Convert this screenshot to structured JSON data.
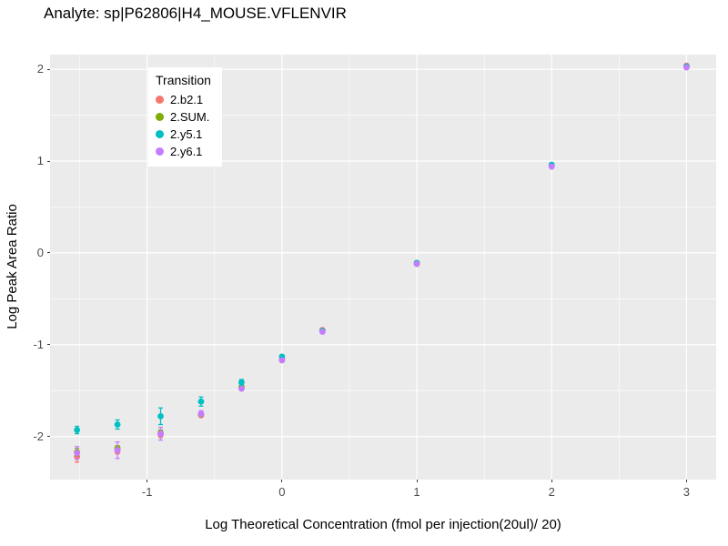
{
  "title": "Analyte: sp|P62806|H4_MOUSE.VFLENVIR",
  "chart_data": {
    "type": "scatter",
    "subtype": "pointrange-calibration-curve",
    "title": "Analyte: sp|P62806|H4_MOUSE.VFLENVIR",
    "xlabel": "Log Theoretical Concentration (fmol per injection(20ul)/ 20)",
    "ylabel": "Log Peak Area Ratio",
    "legend_title": "Transition",
    "legend_position": "inside top-left",
    "grid": true,
    "panel_background": "#EBEBEB",
    "grid_color": "#FFFFFF",
    "tick_label_color": "#4D4D4D",
    "xlim": [
      -1.72,
      3.22
    ],
    "ylim": [
      -2.47,
      2.16
    ],
    "x_major_ticks": [
      -1,
      0,
      1,
      2,
      3
    ],
    "x_minor_ticks": [
      -1.5,
      -0.5,
      0.5,
      1.5,
      2.5
    ],
    "y_major_ticks": [
      -2,
      -1,
      0,
      1,
      2
    ],
    "y_minor_ticks": [
      -1.5,
      -0.5,
      0.5,
      1.5
    ],
    "x": [
      -1.52,
      -1.22,
      -0.9,
      -0.6,
      -0.3,
      0,
      0.3,
      1,
      2,
      3
    ],
    "series": [
      {
        "name": "2.b2.1",
        "color": "#F8766D",
        "y": [
          -2.22,
          -2.16,
          -1.98,
          -1.77,
          -1.47,
          -1.16,
          -0.84,
          -0.11,
          0.95,
          2.04
        ],
        "err": [
          0.06,
          0.03,
          0.03,
          0.02,
          0.02,
          0.01,
          0.01,
          0.01,
          0.01,
          0.01
        ]
      },
      {
        "name": "2.SUM.",
        "color": "#7CAE00",
        "y": [
          -2.17,
          -2.13,
          -1.96,
          -1.76,
          -1.46,
          -1.17,
          -0.85,
          -0.12,
          0.95,
          2.03
        ],
        "err": [
          0.04,
          0.03,
          0.03,
          0.02,
          0.02,
          0.01,
          0.01,
          0.01,
          0.01,
          0.01
        ]
      },
      {
        "name": "2.y5.1",
        "color": "#00BFC4",
        "y": [
          -1.93,
          -1.87,
          -1.78,
          -1.62,
          -1.41,
          -1.13,
          -0.85,
          -0.11,
          0.96,
          2.03
        ],
        "err": [
          0.04,
          0.05,
          0.09,
          0.05,
          0.03,
          0.01,
          0.01,
          0.01,
          0.01,
          0.01
        ]
      },
      {
        "name": "2.y6.1",
        "color": "#C77CFF",
        "y": [
          -2.18,
          -2.15,
          -1.97,
          -1.75,
          -1.48,
          -1.17,
          -0.86,
          -0.12,
          0.94,
          2.02
        ],
        "err": [
          0.07,
          0.09,
          0.07,
          0.03,
          0.02,
          0.01,
          0.01,
          0.01,
          0.01,
          0.01
        ]
      }
    ]
  }
}
